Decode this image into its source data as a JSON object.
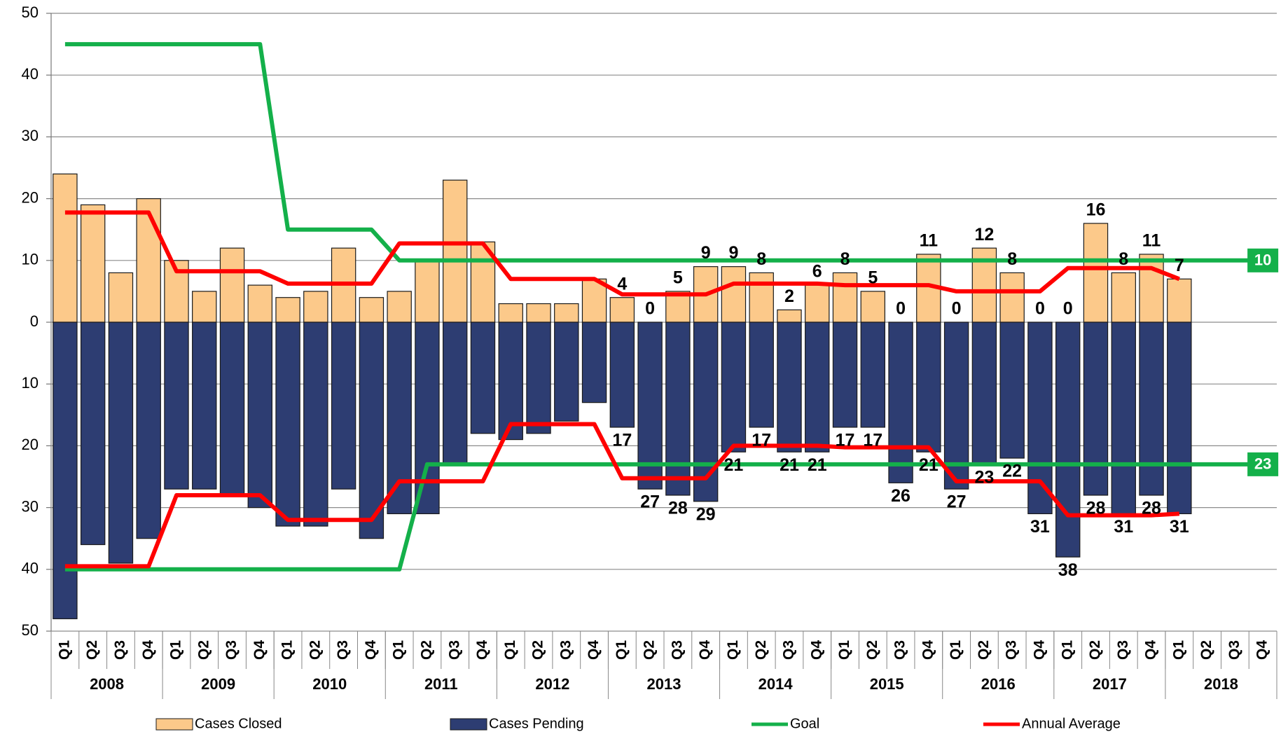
{
  "chart_data": {
    "type": "bar",
    "categories": [
      "Q1",
      "Q2",
      "Q3",
      "Q4",
      "Q1",
      "Q2",
      "Q3",
      "Q4",
      "Q1",
      "Q2",
      "Q3",
      "Q4",
      "Q1",
      "Q2",
      "Q3",
      "Q4",
      "Q1",
      "Q2",
      "Q3",
      "Q4",
      "Q1",
      "Q2",
      "Q3",
      "Q4",
      "Q1",
      "Q2",
      "Q3",
      "Q4",
      "Q1",
      "Q2",
      "Q3",
      "Q4",
      "Q1",
      "Q2",
      "Q3",
      "Q4",
      "Q1",
      "Q2",
      "Q3",
      "Q4",
      "Q1",
      "Q2",
      "Q3",
      "Q4"
    ],
    "years": [
      "2008",
      "2009",
      "2010",
      "2011",
      "2012",
      "2013",
      "2014",
      "2015",
      "2016",
      "2017",
      "2018"
    ],
    "ylim": [
      -50,
      50
    ],
    "yticks": [
      {
        "value": -50,
        "label": "50"
      },
      {
        "value": -40,
        "label": "40"
      },
      {
        "value": -30,
        "label": "30"
      },
      {
        "value": -20,
        "label": "20"
      },
      {
        "value": -10,
        "label": "10"
      },
      0,
      10,
      20,
      30,
      40,
      50
    ],
    "grid": true,
    "series": [
      {
        "name": "Cases Closed",
        "type": "bar",
        "color": "#fcc98a",
        "values": [
          24,
          19,
          8,
          20,
          10,
          5,
          12,
          6,
          4,
          5,
          12,
          4,
          5,
          10,
          23,
          13,
          3,
          3,
          3,
          7,
          4,
          0,
          5,
          9,
          9,
          8,
          2,
          6,
          8,
          5,
          0,
          11,
          0,
          12,
          8,
          0,
          0,
          16,
          8,
          11,
          7,
          null,
          null,
          null
        ],
        "value_labels": [
          null,
          null,
          null,
          null,
          null,
          null,
          null,
          null,
          null,
          null,
          null,
          null,
          null,
          null,
          null,
          null,
          null,
          null,
          null,
          null,
          "4",
          "0",
          "5",
          "9",
          "9",
          "8",
          "2",
          "6",
          "8",
          "5",
          "0",
          "11",
          "0",
          "12",
          "8",
          "0",
          "0",
          "16",
          "8",
          "11",
          "7",
          null,
          null,
          null
        ]
      },
      {
        "name": "Cases Pending",
        "type": "bar",
        "color": "#2d3d72",
        "values": [
          -48,
          -36,
          -39,
          -35,
          -27,
          -27,
          -28,
          -30,
          -33,
          -33,
          -27,
          -35,
          -31,
          -31,
          -23,
          -18,
          -19,
          -18,
          -16,
          -13,
          -17,
          -27,
          -28,
          -29,
          -21,
          -17,
          -21,
          -21,
          -17,
          -17,
          -26,
          -21,
          -27,
          -23,
          -22,
          -31,
          -38,
          -28,
          -31,
          -28,
          -31,
          null,
          null,
          null
        ],
        "value_labels": [
          null,
          null,
          null,
          null,
          null,
          null,
          null,
          null,
          null,
          null,
          null,
          null,
          null,
          null,
          null,
          null,
          null,
          null,
          null,
          null,
          "17",
          "27",
          "28",
          "29",
          "21",
          "17",
          "21",
          "21",
          "17",
          "17",
          "26",
          "21",
          "27",
          "23",
          "22",
          "31",
          "38",
          "28",
          "31",
          "28",
          "31",
          null,
          null,
          null
        ]
      },
      {
        "name": "Goal",
        "type": "line",
        "color": "#14b04a",
        "end_label": true,
        "values": [
          45,
          45,
          45,
          45,
          45,
          45,
          45,
          45,
          15,
          15,
          15,
          15,
          10,
          10,
          10,
          10,
          10,
          10,
          10,
          10,
          10,
          10,
          10,
          10,
          10,
          10,
          10,
          10,
          10,
          10,
          10,
          10,
          10,
          10,
          10,
          10,
          10,
          10,
          10,
          10,
          10,
          10,
          10,
          10
        ]
      },
      {
        "type": "line",
        "color": "#14b04a",
        "end_label": true,
        "values": [
          -40,
          -40,
          -40,
          -40,
          -40,
          -40,
          -40,
          -40,
          -40,
          -40,
          -40,
          -40,
          -40,
          -23,
          -23,
          -23,
          -23,
          -23,
          -23,
          -23,
          -23,
          -23,
          -23,
          -23,
          -23,
          -23,
          -23,
          -23,
          -23,
          -23,
          -23,
          -23,
          -23,
          -23,
          -23,
          -23,
          -23,
          -23,
          -23,
          -23,
          -23,
          -23,
          -23,
          -23
        ],
        "value_labels": [
          null,
          null,
          null,
          null,
          null,
          null,
          null,
          null,
          null,
          null,
          null,
          null,
          null,
          null,
          null,
          null,
          null,
          null,
          null,
          null,
          null,
          null,
          null,
          null,
          null,
          null,
          null,
          null,
          null,
          null,
          null,
          null,
          null,
          null,
          null,
          null,
          null,
          null,
          null,
          null,
          null,
          null,
          null,
          "23"
        ]
      },
      {
        "name": "Annual Average",
        "type": "line",
        "color": "#ff0000",
        "values": [
          17.75,
          17.75,
          17.75,
          17.75,
          8.25,
          8.25,
          8.25,
          8.25,
          6.25,
          6.25,
          6.25,
          6.25,
          12.75,
          12.75,
          12.75,
          12.75,
          7,
          7,
          7,
          7,
          4.5,
          4.5,
          4.5,
          4.5,
          6.25,
          6.25,
          6.25,
          6.25,
          6,
          6,
          6,
          6,
          5,
          5,
          5,
          5,
          8.75,
          8.75,
          8.75,
          8.75,
          7,
          null,
          null,
          null
        ]
      },
      {
        "type": "line",
        "color": "#ff0000",
        "values": [
          -39.5,
          -39.5,
          -39.5,
          -39.5,
          -28,
          -28,
          -28,
          -28,
          -32,
          -32,
          -32,
          -32,
          -25.75,
          -25.75,
          -25.75,
          -25.75,
          -16.5,
          -16.5,
          -16.5,
          -16.5,
          -25.25,
          -25.25,
          -25.25,
          -25.25,
          -20,
          -20,
          -20,
          -20,
          -20.25,
          -20.25,
          -20.25,
          -20.25,
          -25.75,
          -25.75,
          -25.75,
          -25.75,
          -31.25,
          -31.25,
          -31.25,
          -31.25,
          -31,
          null,
          null,
          null
        ]
      }
    ]
  }
}
